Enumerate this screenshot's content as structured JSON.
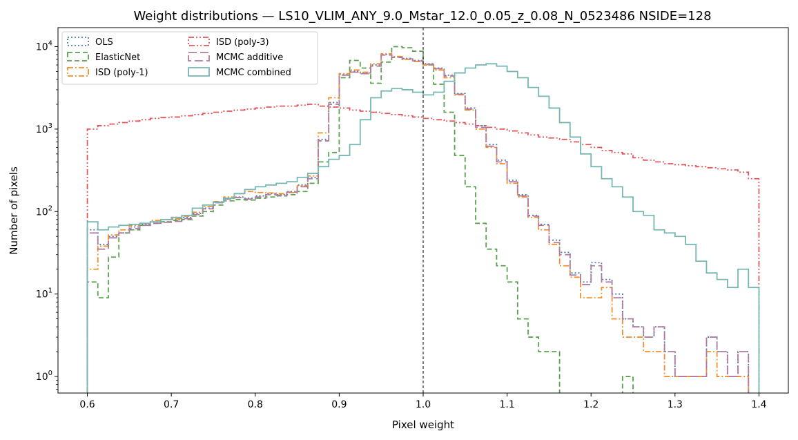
{
  "chart_data": {
    "type": "histogram",
    "title": "Weight distributions — LS10_VLIM_ANY_9.0_Mstar_12.0_0.05_z_0.08_N_0523486  NSIDE=128",
    "xlabel": "Pixel weight",
    "ylabel": "Number of pixels",
    "xlim": [
      0.565,
      1.435
    ],
    "ylim": [
      0.63,
      17000
    ],
    "yscale": "log",
    "x_ticks": [
      "0.6",
      "0.7",
      "0.8",
      "0.9",
      "1.0",
      "1.1",
      "1.2",
      "1.3",
      "1.4"
    ],
    "y_tick_exponents": [
      "0",
      "1",
      "2",
      "3",
      "4"
    ],
    "y_tick_base": "10",
    "legend_position": "upper-left",
    "reference_line": {
      "x": 1.0,
      "style": "dashed",
      "color": "#000000"
    },
    "bins": {
      "start": 0.6,
      "end": 1.4,
      "count": 64
    },
    "series": [
      {
        "name": "OLS",
        "color": "#4e79a7",
        "dash": "dotted",
        "counts": [
          60,
          40,
          50,
          55,
          65,
          70,
          75,
          75,
          80,
          85,
          95,
          110,
          130,
          145,
          150,
          145,
          155,
          165,
          160,
          175,
          210,
          260,
          750,
          2100,
          4600,
          5000,
          4800,
          6000,
          8000,
          7500,
          7200,
          6800,
          6200,
          5500,
          4500,
          2700,
          1800,
          1100,
          650,
          420,
          240,
          160,
          90,
          70,
          45,
          32,
          18,
          14,
          24,
          15,
          10,
          5,
          4,
          3,
          4,
          2,
          1,
          1,
          1,
          3,
          2,
          1,
          2,
          0
        ]
      },
      {
        "name": "ElasticNet",
        "color": "#59a14f",
        "dash": "dashed",
        "counts": [
          14,
          9,
          28,
          55,
          60,
          68,
          72,
          75,
          78,
          80,
          88,
          100,
          120,
          135,
          140,
          138,
          145,
          150,
          155,
          160,
          175,
          220,
          400,
          520,
          4200,
          6800,
          5500,
          3600,
          6500,
          10000,
          9700,
          8800,
          6000,
          3500,
          1600,
          480,
          200,
          72,
          35,
          22,
          14,
          5,
          3,
          2,
          2,
          0,
          0,
          0,
          0,
          0,
          0,
          1,
          0,
          0,
          0,
          0,
          0,
          0,
          0,
          0,
          0,
          0,
          0,
          0
        ]
      },
      {
        "name": "ISD (poly-1)",
        "color": "#f28e2b",
        "dash": "dashdot",
        "counts": [
          20,
          38,
          52,
          60,
          68,
          72,
          78,
          80,
          82,
          88,
          98,
          115,
          132,
          150,
          165,
          175,
          170,
          168,
          165,
          170,
          205,
          270,
          900,
          2400,
          4700,
          5200,
          4900,
          6200,
          8200,
          7600,
          7000,
          6600,
          6000,
          5200,
          4200,
          2600,
          1700,
          1000,
          600,
          380,
          220,
          150,
          85,
          60,
          40,
          22,
          16,
          9,
          9,
          12,
          5,
          3,
          3,
          2,
          2,
          1,
          1,
          1,
          1,
          2,
          1,
          1,
          1,
          0
        ]
      },
      {
        "name": "ISD (poly-3)",
        "color": "#e15759",
        "dash": "dashdotdot",
        "counts": [
          1000,
          1100,
          1150,
          1200,
          1250,
          1300,
          1350,
          1380,
          1400,
          1450,
          1500,
          1550,
          1600,
          1650,
          1700,
          1750,
          1800,
          1850,
          1900,
          1900,
          1950,
          2000,
          1900,
          1850,
          1800,
          1700,
          1650,
          1600,
          1550,
          1500,
          1450,
          1400,
          1350,
          1300,
          1250,
          1200,
          1150,
          1100,
          1050,
          1000,
          950,
          900,
          850,
          800,
          780,
          750,
          700,
          650,
          600,
          550,
          520,
          500,
          450,
          420,
          400,
          380,
          370,
          360,
          350,
          340,
          330,
          320,
          300,
          250
        ]
      },
      {
        "name": "MCMC additive",
        "color": "#b07aa1",
        "dash": "longdash",
        "counts": [
          55,
          35,
          48,
          55,
          62,
          68,
          72,
          74,
          76,
          82,
          92,
          108,
          128,
          142,
          148,
          142,
          150,
          160,
          158,
          172,
          200,
          250,
          720,
          2000,
          4500,
          4900,
          4700,
          5800,
          7900,
          7400,
          7100,
          6700,
          6100,
          5400,
          4400,
          2650,
          1750,
          1050,
          620,
          400,
          230,
          155,
          88,
          68,
          42,
          30,
          17,
          13,
          22,
          14,
          9,
          5,
          4,
          3,
          4,
          2,
          1,
          1,
          1,
          3,
          2,
          1,
          2,
          0
        ]
      },
      {
        "name": "MCMC combined",
        "color": "#76b7b2",
        "dash": "solid",
        "counts": [
          75,
          60,
          65,
          68,
          70,
          72,
          75,
          80,
          85,
          90,
          110,
          120,
          130,
          145,
          165,
          185,
          200,
          210,
          220,
          230,
          260,
          290,
          350,
          430,
          480,
          650,
          1300,
          2400,
          2900,
          3100,
          3000,
          2800,
          2600,
          2800,
          3800,
          4800,
          5500,
          6000,
          6200,
          5800,
          5000,
          4200,
          3200,
          2500,
          1800,
          1200,
          800,
          500,
          350,
          250,
          200,
          150,
          100,
          90,
          60,
          55,
          50,
          40,
          25,
          18,
          15,
          12,
          20,
          12
        ]
      }
    ]
  }
}
